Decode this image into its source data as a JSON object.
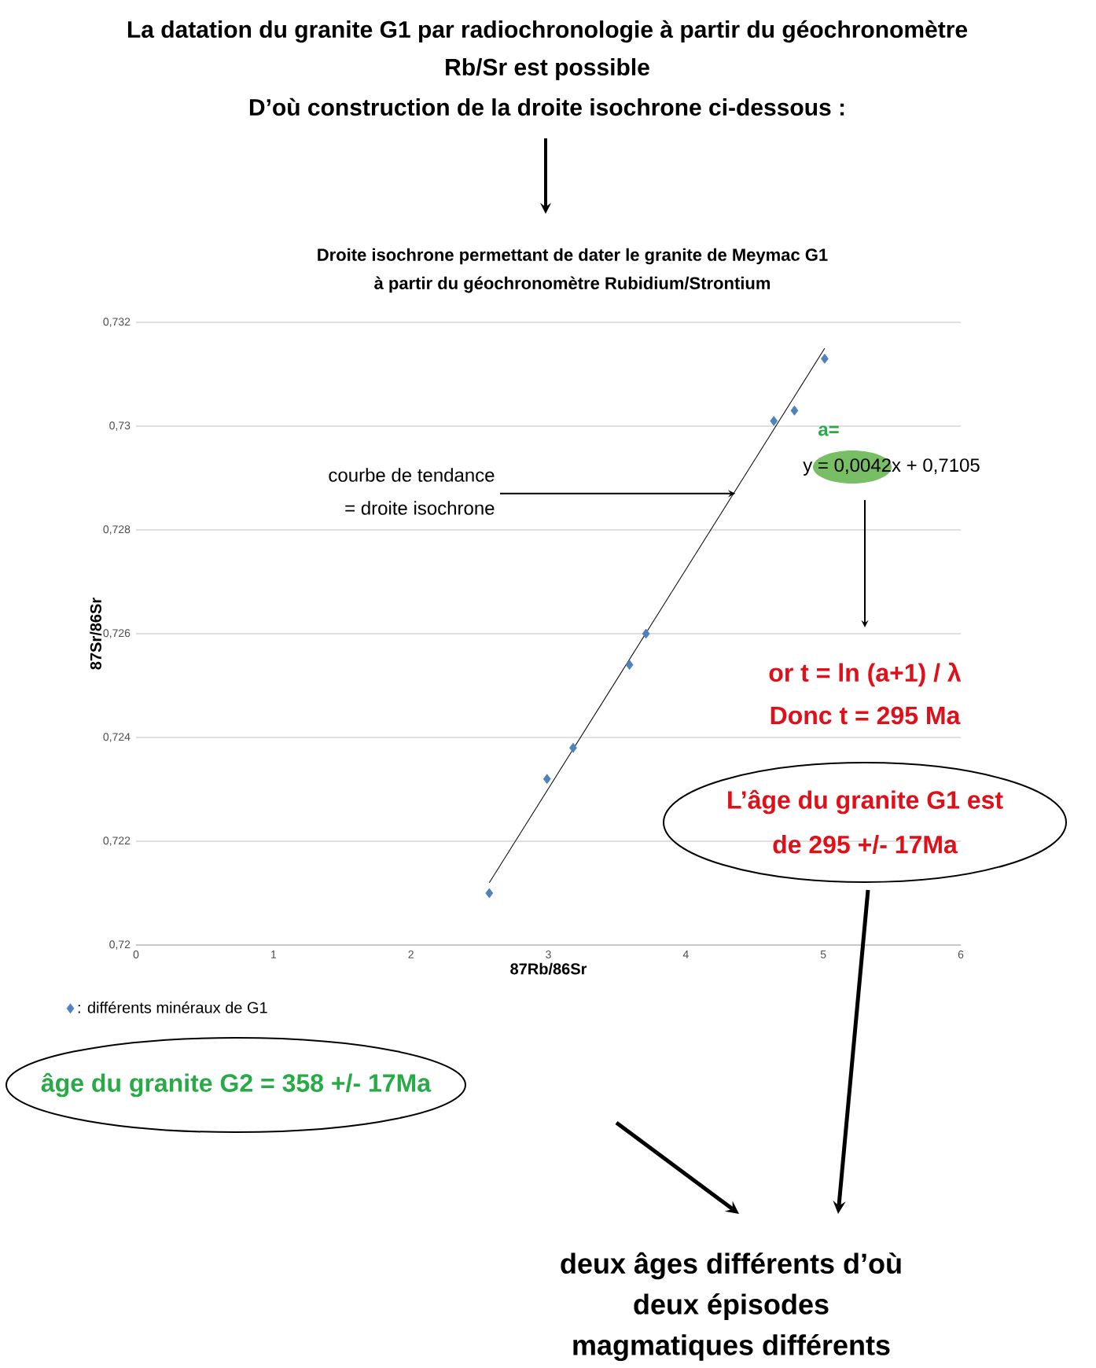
{
  "chart_data": {
    "type": "scatter",
    "title": "Droite isochrone permettant de dater le granite de Meymac G1",
    "subtitle": "à partir du géochronomètre Rubidium/Strontium",
    "xlabel": "87Rb/86Sr",
    "ylabel": "87Sr/86Sr",
    "xlim": [
      0,
      6
    ],
    "xticks": [
      0,
      1,
      2,
      3,
      4,
      5,
      6
    ],
    "ylim": [
      0.72,
      0.732
    ],
    "yticks": [
      {
        "value": 0.72,
        "label": "0,72"
      },
      {
        "value": 0.722,
        "label": "0,722"
      },
      {
        "value": 0.724,
        "label": "0,724"
      },
      {
        "value": 0.726,
        "label": "0,726"
      },
      {
        "value": 0.728,
        "label": "0,728"
      },
      {
        "value": 0.73,
        "label": "0,73"
      },
      {
        "value": 0.732,
        "label": "0,732"
      }
    ],
    "grid": "y",
    "legend": "bottom left",
    "series": [
      {
        "name": ": différents minéraux de G1",
        "marker": "diamond",
        "color": "#4f81bd",
        "x": [
          2.57,
          2.99,
          3.18,
          3.59,
          3.71,
          4.64,
          4.79,
          5.01
        ],
        "values": [
          0.721,
          0.7232,
          0.7238,
          0.7254,
          0.726,
          0.7301,
          0.7303,
          0.7313
        ]
      },
      {
        "type": "line",
        "marker": "none",
        "color": "#000000",
        "x": [
          2.57,
          5.01
        ],
        "values": [
          0.7212,
          0.7315
        ]
      }
    ],
    "annotations": [
      "La datation du granite G1 par radiochronologie à partir du géochronomètre",
      "Rb/Sr est possible",
      "D’où construction de la droite isochrone ci-dessous :",
      {
        "text": "courbe de tendance",
        "x": 4.36,
        "y": 0.7287
      },
      "= droite isochrone",
      "a=",
      "y = 0,0042x + 0,7105",
      "or t = ln (a+1) / λ",
      "Donc t = 295 Ma",
      "L’âge du granite G1 est",
      "de 295 +/- 17Ma",
      "âge du granite G2 = 358 +/- 17Ma",
      "deux âges différents d’où",
      "deux épisodes",
      "magmatiques différents"
    ]
  }
}
